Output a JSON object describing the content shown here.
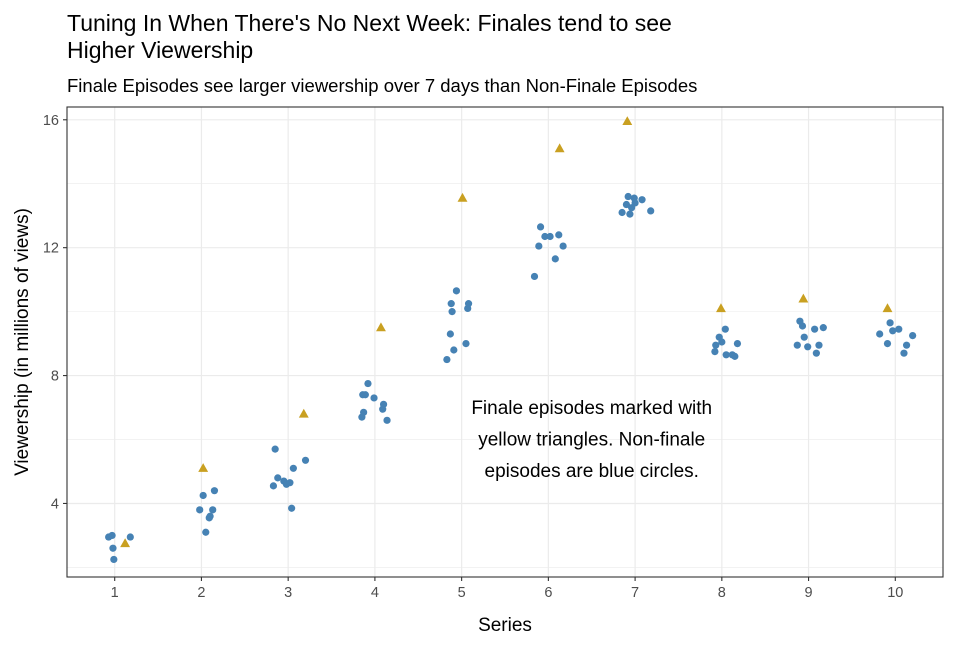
{
  "chart_data": {
    "type": "scatter",
    "title": "Tuning In When There's No Next Week: Finales tend to see Higher Viewership",
    "title_lines": [
      "Tuning In When There's No Next Week: Finales tend to see",
      "Higher Viewership"
    ],
    "subtitle": "Finale Episodes see larger viewership over 7 days than Non-Finale Episodes",
    "xlabel": "Series",
    "ylabel": "Viewership (in millions of views)",
    "x_ticks": [
      "1",
      "2",
      "3",
      "4",
      "5",
      "6",
      "7",
      "8",
      "9",
      "10"
    ],
    "y_ticks": [
      "4",
      "8",
      "12",
      "16"
    ],
    "xlim": [
      0.45,
      10.55
    ],
    "ylim": [
      1.7,
      16.4
    ],
    "grid": true,
    "annotation": {
      "lines": [
        "Finale episodes marked with",
        "yellow triangles. Non-finale",
        "episodes are blue circles."
      ],
      "x": 6.5,
      "y": 6.8
    },
    "colors": {
      "non_finale": "#4682b4",
      "finale": "#c9a021",
      "grid": "#ebebeb",
      "border": "#333333"
    },
    "series": [
      {
        "marker": "circle",
        "color": "#4682b4",
        "points": [
          [
            0.93,
            2.95
          ],
          [
            0.97,
            3.0
          ],
          [
            0.98,
            2.6
          ],
          [
            0.99,
            2.25
          ],
          [
            1.18,
            2.95
          ],
          [
            1.98,
            3.8
          ],
          [
            2.02,
            4.25
          ],
          [
            2.05,
            3.1
          ],
          [
            2.09,
            3.55
          ],
          [
            2.1,
            3.6
          ],
          [
            2.13,
            3.8
          ],
          [
            2.15,
            4.4
          ],
          [
            2.83,
            4.55
          ],
          [
            2.85,
            5.7
          ],
          [
            2.88,
            4.8
          ],
          [
            2.95,
            4.7
          ],
          [
            2.98,
            4.6
          ],
          [
            3.02,
            4.65
          ],
          [
            3.04,
            3.85
          ],
          [
            3.06,
            5.1
          ],
          [
            3.2,
            5.35
          ],
          [
            3.85,
            6.7
          ],
          [
            3.86,
            7.4
          ],
          [
            3.87,
            6.85
          ],
          [
            3.89,
            7.4
          ],
          [
            3.92,
            7.75
          ],
          [
            3.99,
            7.3
          ],
          [
            4.09,
            6.95
          ],
          [
            4.1,
            7.1
          ],
          [
            4.14,
            6.6
          ],
          [
            4.83,
            8.5
          ],
          [
            4.87,
            9.3
          ],
          [
            4.88,
            10.25
          ],
          [
            4.89,
            10.0
          ],
          [
            4.91,
            8.8
          ],
          [
            4.94,
            10.65
          ],
          [
            5.05,
            9.0
          ],
          [
            5.07,
            10.1
          ],
          [
            5.08,
            10.25
          ],
          [
            5.84,
            11.1
          ],
          [
            5.89,
            12.05
          ],
          [
            5.91,
            12.65
          ],
          [
            5.96,
            12.35
          ],
          [
            6.02,
            12.35
          ],
          [
            6.08,
            11.65
          ],
          [
            6.12,
            12.4
          ],
          [
            6.17,
            12.05
          ],
          [
            6.85,
            13.1
          ],
          [
            6.9,
            13.35
          ],
          [
            6.92,
            13.6
          ],
          [
            6.94,
            13.05
          ],
          [
            6.96,
            13.25
          ],
          [
            6.99,
            13.55
          ],
          [
            7.0,
            13.4
          ],
          [
            7.08,
            13.5
          ],
          [
            7.18,
            13.15
          ],
          [
            7.92,
            8.75
          ],
          [
            7.93,
            8.95
          ],
          [
            7.97,
            9.2
          ],
          [
            8.0,
            9.05
          ],
          [
            8.04,
            9.45
          ],
          [
            8.05,
            8.65
          ],
          [
            8.12,
            8.65
          ],
          [
            8.15,
            8.6
          ],
          [
            8.18,
            9.0
          ],
          [
            8.87,
            8.95
          ],
          [
            8.9,
            9.7
          ],
          [
            8.93,
            9.55
          ],
          [
            8.95,
            9.2
          ],
          [
            8.99,
            8.9
          ],
          [
            9.07,
            9.45
          ],
          [
            9.09,
            8.7
          ],
          [
            9.12,
            8.95
          ],
          [
            9.17,
            9.5
          ],
          [
            9.82,
            9.3
          ],
          [
            9.91,
            9.0
          ],
          [
            9.94,
            9.65
          ],
          [
            9.97,
            9.4
          ],
          [
            10.04,
            9.45
          ],
          [
            10.1,
            8.7
          ],
          [
            10.13,
            8.95
          ],
          [
            10.2,
            9.25
          ]
        ]
      },
      {
        "marker": "triangle",
        "color": "#c9a021",
        "points": [
          [
            1.12,
            2.75
          ],
          [
            2.02,
            5.1
          ],
          [
            3.18,
            6.8
          ],
          [
            4.07,
            9.5
          ],
          [
            5.01,
            13.55
          ],
          [
            6.13,
            15.1
          ],
          [
            6.91,
            15.95
          ],
          [
            7.99,
            10.1
          ],
          [
            8.94,
            10.4
          ],
          [
            9.91,
            10.1
          ]
        ]
      }
    ]
  }
}
